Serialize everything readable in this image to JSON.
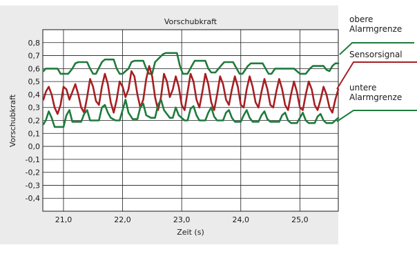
{
  "chart_data": {
    "type": "line",
    "title": "Vorschubkraft",
    "xlabel": "Zeit (s)",
    "ylabel": "Vorschubkraft",
    "xlim": [
      20.65,
      25.65
    ],
    "ylim": [
      -0.5,
      0.9
    ],
    "x_ticks": [
      21.0,
      22.0,
      23.0,
      24.0,
      25.0
    ],
    "x_tick_labels": [
      "21,0",
      "22,0",
      "23,0",
      "24,0",
      "25,0"
    ],
    "y_ticks": [
      0.8,
      0.7,
      0.6,
      0.5,
      0.4,
      0.3,
      0.2,
      0.1,
      0.0,
      -0.1,
      -0.2,
      -0.3,
      -0.4
    ],
    "y_tick_labels": [
      "0,8",
      "0,7",
      "0,6",
      "0,5",
      "0,4",
      "0,3",
      "0,2",
      "0,1",
      "0,0",
      "-0,1",
      "-0,2",
      "-0,3",
      "-0,4"
    ],
    "grid": true,
    "series": [
      {
        "name": "obere Alarmgrenze",
        "color": "#1e7a3c",
        "x": [
          20.66,
          20.7,
          20.73,
          20.75,
          20.9,
          20.95,
          21.0,
          21.08,
          21.15,
          21.2,
          21.25,
          21.4,
          21.45,
          21.5,
          21.55,
          21.65,
          21.7,
          21.75,
          21.85,
          21.9,
          21.95,
          22.0,
          22.1,
          22.15,
          22.2,
          22.25,
          22.35,
          22.4,
          22.45,
          22.5,
          22.55,
          22.68,
          22.73,
          22.78,
          22.92,
          22.97,
          23.02,
          23.1,
          23.17,
          23.22,
          23.27,
          23.4,
          23.45,
          23.5,
          23.57,
          23.68,
          23.72,
          23.77,
          23.87,
          23.93,
          23.98,
          24.03,
          24.12,
          24.17,
          24.22,
          24.27,
          24.37,
          24.42,
          24.47,
          24.52,
          24.58,
          24.7,
          24.75,
          24.8,
          24.9,
          24.95,
          25.0,
          25.1,
          25.17,
          25.22,
          25.27,
          25.4,
          25.45,
          25.5,
          25.55,
          25.6,
          25.65
        ],
        "y": [
          0.58,
          0.6,
          0.6,
          0.6,
          0.6,
          0.56,
          0.56,
          0.56,
          0.6,
          0.64,
          0.65,
          0.65,
          0.6,
          0.56,
          0.56,
          0.65,
          0.67,
          0.67,
          0.67,
          0.6,
          0.56,
          0.56,
          0.6,
          0.65,
          0.66,
          0.66,
          0.66,
          0.6,
          0.56,
          0.56,
          0.65,
          0.71,
          0.72,
          0.72,
          0.72,
          0.62,
          0.56,
          0.56,
          0.62,
          0.66,
          0.66,
          0.66,
          0.6,
          0.57,
          0.57,
          0.63,
          0.65,
          0.65,
          0.65,
          0.6,
          0.56,
          0.56,
          0.62,
          0.64,
          0.64,
          0.64,
          0.64,
          0.6,
          0.56,
          0.56,
          0.6,
          0.6,
          0.6,
          0.6,
          0.6,
          0.58,
          0.56,
          0.56,
          0.6,
          0.62,
          0.62,
          0.62,
          0.59,
          0.58,
          0.62,
          0.64,
          0.64
        ]
      },
      {
        "name": "Sensorsignal",
        "color": "#a61e22",
        "x": [
          20.66,
          20.7,
          20.75,
          20.8,
          20.85,
          20.9,
          20.95,
          21.0,
          21.05,
          21.1,
          21.15,
          21.2,
          21.25,
          21.3,
          21.35,
          21.4,
          21.45,
          21.5,
          21.55,
          21.6,
          21.65,
          21.7,
          21.75,
          21.8,
          21.85,
          21.9,
          21.95,
          22.0,
          22.05,
          22.1,
          22.15,
          22.2,
          22.25,
          22.3,
          22.35,
          22.4,
          22.45,
          22.5,
          22.55,
          22.6,
          22.65,
          22.7,
          22.75,
          22.8,
          22.85,
          22.9,
          22.95,
          23.0,
          23.05,
          23.1,
          23.15,
          23.2,
          23.25,
          23.3,
          23.35,
          23.4,
          23.45,
          23.5,
          23.55,
          23.6,
          23.65,
          23.7,
          23.75,
          23.8,
          23.85,
          23.9,
          23.95,
          24.0,
          24.05,
          24.1,
          24.15,
          24.2,
          24.25,
          24.3,
          24.35,
          24.4,
          24.45,
          24.5,
          24.55,
          24.6,
          24.65,
          24.7,
          24.75,
          24.8,
          24.85,
          24.9,
          24.95,
          25.0,
          25.05,
          25.1,
          25.15,
          25.2,
          25.25,
          25.3,
          25.35,
          25.4,
          25.45,
          25.5,
          25.55,
          25.6,
          25.65
        ],
        "y": [
          0.36,
          0.42,
          0.46,
          0.4,
          0.3,
          0.25,
          0.32,
          0.46,
          0.44,
          0.36,
          0.42,
          0.48,
          0.4,
          0.3,
          0.26,
          0.38,
          0.52,
          0.46,
          0.35,
          0.32,
          0.46,
          0.56,
          0.48,
          0.34,
          0.26,
          0.36,
          0.5,
          0.46,
          0.38,
          0.44,
          0.58,
          0.54,
          0.4,
          0.3,
          0.36,
          0.52,
          0.62,
          0.54,
          0.38,
          0.28,
          0.38,
          0.56,
          0.5,
          0.38,
          0.44,
          0.54,
          0.46,
          0.32,
          0.28,
          0.42,
          0.56,
          0.5,
          0.36,
          0.3,
          0.42,
          0.56,
          0.48,
          0.34,
          0.28,
          0.4,
          0.54,
          0.48,
          0.36,
          0.32,
          0.44,
          0.54,
          0.46,
          0.32,
          0.3,
          0.44,
          0.54,
          0.46,
          0.34,
          0.3,
          0.42,
          0.52,
          0.44,
          0.32,
          0.3,
          0.42,
          0.52,
          0.44,
          0.32,
          0.28,
          0.4,
          0.5,
          0.42,
          0.3,
          0.28,
          0.4,
          0.5,
          0.44,
          0.32,
          0.28,
          0.36,
          0.46,
          0.4,
          0.3,
          0.26,
          0.36,
          0.44
        ]
      },
      {
        "name": "untere Alarmgrenze",
        "color": "#1e7a3c",
        "x": [
          20.66,
          20.7,
          20.75,
          20.8,
          20.85,
          20.9,
          21.0,
          21.05,
          21.1,
          21.15,
          21.2,
          21.3,
          21.35,
          21.4,
          21.45,
          21.55,
          21.6,
          21.65,
          21.7,
          21.75,
          21.8,
          21.88,
          21.95,
          22.0,
          22.05,
          22.1,
          22.17,
          22.25,
          22.3,
          22.35,
          22.4,
          22.48,
          22.55,
          22.6,
          22.65,
          22.7,
          22.8,
          22.85,
          22.9,
          22.95,
          23.05,
          23.1,
          23.15,
          23.2,
          23.25,
          23.3,
          23.4,
          23.45,
          23.5,
          23.55,
          23.6,
          23.7,
          23.75,
          23.8,
          23.85,
          23.9,
          24.0,
          24.05,
          24.1,
          24.15,
          24.2,
          24.3,
          24.35,
          24.4,
          24.45,
          24.5,
          24.65,
          24.7,
          24.75,
          24.8,
          24.85,
          24.95,
          25.0,
          25.05,
          25.1,
          25.15,
          25.25,
          25.3,
          25.35,
          25.4,
          25.45,
          25.55,
          25.6,
          25.65
        ],
        "y": [
          0.17,
          0.2,
          0.27,
          0.22,
          0.15,
          0.15,
          0.15,
          0.24,
          0.28,
          0.19,
          0.19,
          0.19,
          0.25,
          0.28,
          0.2,
          0.2,
          0.2,
          0.3,
          0.32,
          0.26,
          0.22,
          0.2,
          0.2,
          0.28,
          0.36,
          0.26,
          0.21,
          0.21,
          0.3,
          0.33,
          0.24,
          0.22,
          0.22,
          0.32,
          0.36,
          0.28,
          0.22,
          0.22,
          0.3,
          0.24,
          0.2,
          0.2,
          0.29,
          0.31,
          0.24,
          0.2,
          0.2,
          0.26,
          0.3,
          0.23,
          0.2,
          0.2,
          0.26,
          0.28,
          0.22,
          0.19,
          0.19,
          0.24,
          0.28,
          0.22,
          0.19,
          0.19,
          0.24,
          0.27,
          0.21,
          0.19,
          0.19,
          0.24,
          0.26,
          0.2,
          0.18,
          0.18,
          0.22,
          0.26,
          0.2,
          0.18,
          0.18,
          0.23,
          0.25,
          0.2,
          0.18,
          0.18,
          0.2,
          0.22
        ]
      }
    ],
    "annotations": [
      {
        "series": "obere Alarmgrenze",
        "lines": [
          "obere",
          "Alarmgrenze"
        ]
      },
      {
        "series": "Sensorsignal",
        "lines": [
          "Sensorsignal"
        ]
      },
      {
        "series": "untere Alarmgrenze",
        "lines": [
          "untere",
          "Alarmgrenze"
        ]
      }
    ]
  }
}
